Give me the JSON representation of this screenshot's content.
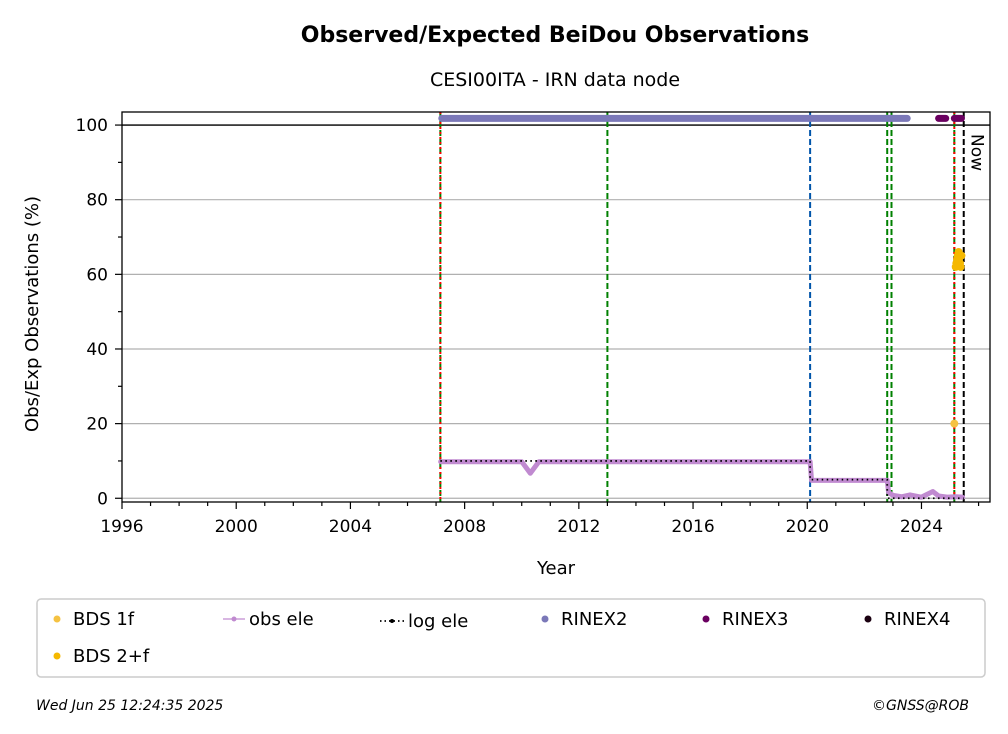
{
  "chart_data": {
    "type": "scatter",
    "title": "Observed/Expected BeiDou Observations",
    "subtitle": "CESI00ITA - IRN data node",
    "xlabel": "Year",
    "ylabel": "Obs/Exp Observations (%)",
    "xlim": [
      1996,
      2026.4
    ],
    "ylim": [
      -1,
      103.5
    ],
    "xticks": [
      1996,
      2000,
      2004,
      2008,
      2012,
      2016,
      2020,
      2024
    ],
    "xtick_labels": [
      "1996",
      "2000",
      "2004",
      "2008",
      "2012",
      "2016",
      "2020",
      "2024"
    ],
    "yticks": [
      0,
      20,
      40,
      60,
      80,
      100
    ],
    "ytick_labels": [
      "0",
      "20",
      "40",
      "60",
      "80",
      "100"
    ],
    "grid": "horizontal",
    "reference_line_y": 100,
    "vlines": [
      {
        "x": 2007.15,
        "color": "#008000",
        "style": "dashed"
      },
      {
        "x": 2007.15,
        "color": "#ff0000",
        "style": "dotted"
      },
      {
        "x": 2013.0,
        "color": "#008000",
        "style": "dashed"
      },
      {
        "x": 2020.1,
        "color": "#0055aa",
        "style": "dashed"
      },
      {
        "x": 2022.8,
        "color": "#008000",
        "style": "dashed"
      },
      {
        "x": 2022.95,
        "color": "#008000",
        "style": "dashed"
      },
      {
        "x": 2025.15,
        "color": "#008000",
        "style": "dashed"
      },
      {
        "x": 2025.15,
        "color": "#ff0000",
        "style": "dotted"
      },
      {
        "x": 2025.48,
        "color": "#000000",
        "style": "dashed"
      }
    ],
    "now_label": "Now",
    "now_x": 2025.48,
    "series": [
      {
        "name": "BDS 1f",
        "color": "#f5c242",
        "kind": "points",
        "points": [
          [
            2025.15,
            20
          ]
        ]
      },
      {
        "name": "BDS 2+f",
        "color": "#f5b800",
        "kind": "points",
        "points": [
          [
            2025.2,
            62
          ],
          [
            2025.22,
            63
          ],
          [
            2025.25,
            64
          ],
          [
            2025.27,
            65
          ],
          [
            2025.3,
            66
          ],
          [
            2025.32,
            64.5
          ],
          [
            2025.35,
            63
          ],
          [
            2025.37,
            62
          ],
          [
            2025.4,
            65
          ]
        ]
      },
      {
        "name": "obs ele",
        "color": "#c08ad0",
        "kind": "line-points",
        "points": [
          [
            2007.15,
            9.8
          ],
          [
            2008.0,
            9.8
          ],
          [
            2009.0,
            9.8
          ],
          [
            2010.0,
            9.8
          ],
          [
            2010.3,
            6.7
          ],
          [
            2010.6,
            9.8
          ],
          [
            2012.0,
            9.8
          ],
          [
            2014.0,
            9.8
          ],
          [
            2016.0,
            9.8
          ],
          [
            2018.0,
            9.8
          ],
          [
            2020.1,
            9.8
          ],
          [
            2020.15,
            4.8
          ],
          [
            2021.0,
            4.8
          ],
          [
            2022.0,
            4.8
          ],
          [
            2022.8,
            4.8
          ],
          [
            2022.85,
            1.5
          ],
          [
            2023.0,
            0.8
          ],
          [
            2023.3,
            0.4
          ],
          [
            2023.6,
            0.9
          ],
          [
            2024.0,
            0.3
          ],
          [
            2024.4,
            1.8
          ],
          [
            2024.6,
            0.6
          ],
          [
            2024.9,
            0.3
          ],
          [
            2025.2,
            0.4
          ],
          [
            2025.45,
            0.3
          ]
        ]
      },
      {
        "name": "log ele",
        "color": "#000000",
        "kind": "dotted-step",
        "points": [
          [
            2007.15,
            10
          ],
          [
            2020.1,
            10
          ],
          [
            2020.1,
            5
          ],
          [
            2022.8,
            5
          ],
          [
            2022.8,
            0
          ],
          [
            2025.48,
            0
          ]
        ]
      },
      {
        "name": "RINEX2",
        "color": "#7b78b8",
        "kind": "band",
        "y": 101.8,
        "x_start": 2007.2,
        "x_end": 2023.5
      },
      {
        "name": "RINEX3",
        "color": "#6a0060",
        "kind": "bands",
        "y": 101.8,
        "ranges": [
          [
            2024.6,
            2024.85
          ],
          [
            2025.15,
            2025.4
          ]
        ]
      },
      {
        "name": "RINEX4",
        "color": "#1a0010",
        "kind": "points",
        "points": []
      }
    ],
    "legend_placement": "bottom",
    "legend_order": [
      "BDS 1f",
      "obs ele",
      "log ele",
      "RINEX2",
      "RINEX3",
      "RINEX4",
      "BDS 2+f"
    ]
  },
  "footer": {
    "timestamp": "Wed Jun 25 12:24:35 2025",
    "credit": "©GNSS@ROB"
  }
}
